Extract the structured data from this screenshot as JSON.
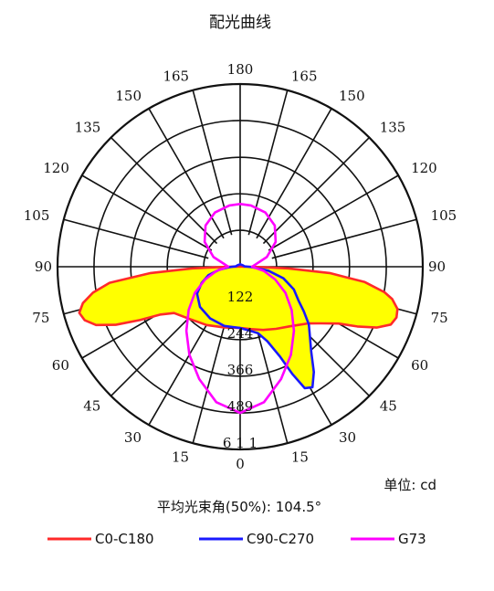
{
  "chart_data": {
    "type": "polar",
    "title": "配光曲线",
    "unit_label": "单位: cd",
    "beam_angle_label": "平均光束角(50%): 104.5°",
    "angle_labels": {
      "left": [
        "0",
        "15",
        "30",
        "45",
        "60",
        "75",
        "90",
        "105",
        "120",
        "135",
        "150",
        "165",
        "180"
      ],
      "right": [
        "15",
        "30",
        "45",
        "60",
        "75",
        "90",
        "105",
        "120",
        "135",
        "150",
        "165"
      ]
    },
    "radial_ticks": [
      122,
      244,
      366,
      489,
      611
    ],
    "radial_tick_labels": [
      "122",
      "244",
      "366",
      "489",
      "6 1 1"
    ],
    "r_max": 611,
    "series": [
      {
        "name": "C0-C180",
        "color": "#ff2a2a",
        "fill": "#ffff00",
        "points": [
          [
            0,
            205
          ],
          [
            10,
            212
          ],
          [
            20,
            225
          ],
          [
            30,
            240
          ],
          [
            40,
            260
          ],
          [
            50,
            295
          ],
          [
            55,
            330
          ],
          [
            60,
            380
          ],
          [
            63,
            440
          ],
          [
            66,
            500
          ],
          [
            69,
            540
          ],
          [
            72,
            550
          ],
          [
            75,
            545
          ],
          [
            78,
            520
          ],
          [
            80,
            490
          ],
          [
            83,
            420
          ],
          [
            86,
            300
          ],
          [
            88,
            160
          ],
          [
            90,
            40
          ],
          [
            92,
            10
          ],
          [
            100,
            5
          ],
          [
            180,
            0
          ],
          [
            260,
            5
          ],
          [
            268,
            10
          ],
          [
            270,
            40
          ],
          [
            272,
            160
          ],
          [
            274,
            300
          ],
          [
            277,
            440
          ],
          [
            280,
            500
          ],
          [
            283,
            540
          ],
          [
            286,
            560
          ],
          [
            289,
            550
          ],
          [
            292,
            520
          ],
          [
            295,
            460
          ],
          [
            298,
            380
          ],
          [
            301,
            310
          ],
          [
            305,
            270
          ],
          [
            315,
            245
          ],
          [
            330,
            225
          ],
          [
            345,
            210
          ],
          [
            360,
            205
          ]
        ]
      },
      {
        "name": "C90-C270",
        "color": "#1a1aff",
        "fill": "#ffff00",
        "points": [
          [
            0,
            205
          ],
          [
            8,
            215
          ],
          [
            15,
            230
          ],
          [
            20,
            265
          ],
          [
            24,
            330
          ],
          [
            26,
            400
          ],
          [
            28,
            460
          ],
          [
            31,
            470
          ],
          [
            35,
            430
          ],
          [
            40,
            370
          ],
          [
            45,
            330
          ],
          [
            50,
            300
          ],
          [
            55,
            260
          ],
          [
            60,
            225
          ],
          [
            67,
            195
          ],
          [
            75,
            150
          ],
          [
            82,
            95
          ],
          [
            88,
            40
          ],
          [
            95,
            15
          ],
          [
            120,
            10
          ],
          [
            180,
            8
          ],
          [
            240,
            10
          ],
          [
            265,
            15
          ],
          [
            272,
            35
          ],
          [
            278,
            70
          ],
          [
            285,
            110
          ],
          [
            293,
            140
          ],
          [
            302,
            170
          ],
          [
            315,
            190
          ],
          [
            330,
            200
          ],
          [
            345,
            205
          ],
          [
            360,
            205
          ]
        ]
      },
      {
        "name": "G73",
        "color": "#ff00ff",
        "fill": "none",
        "points": [
          [
            0,
            489
          ],
          [
            10,
            460
          ],
          [
            20,
            400
          ],
          [
            30,
            340
          ],
          [
            40,
            280
          ],
          [
            50,
            225
          ],
          [
            60,
            175
          ],
          [
            70,
            125
          ],
          [
            80,
            80
          ],
          [
            90,
            40
          ],
          [
            100,
            55
          ],
          [
            110,
            95
          ],
          [
            125,
            145
          ],
          [
            140,
            180
          ],
          [
            155,
            200
          ],
          [
            170,
            208
          ],
          [
            180,
            210
          ],
          [
            190,
            208
          ],
          [
            205,
            200
          ],
          [
            220,
            180
          ],
          [
            235,
            145
          ],
          [
            250,
            95
          ],
          [
            260,
            55
          ],
          [
            270,
            40
          ],
          [
            280,
            80
          ],
          [
            290,
            125
          ],
          [
            300,
            175
          ],
          [
            310,
            225
          ],
          [
            320,
            280
          ],
          [
            330,
            340
          ],
          [
            340,
            400
          ],
          [
            350,
            460
          ],
          [
            360,
            489
          ]
        ]
      }
    ],
    "grid": true,
    "legend_position": "bottom"
  }
}
